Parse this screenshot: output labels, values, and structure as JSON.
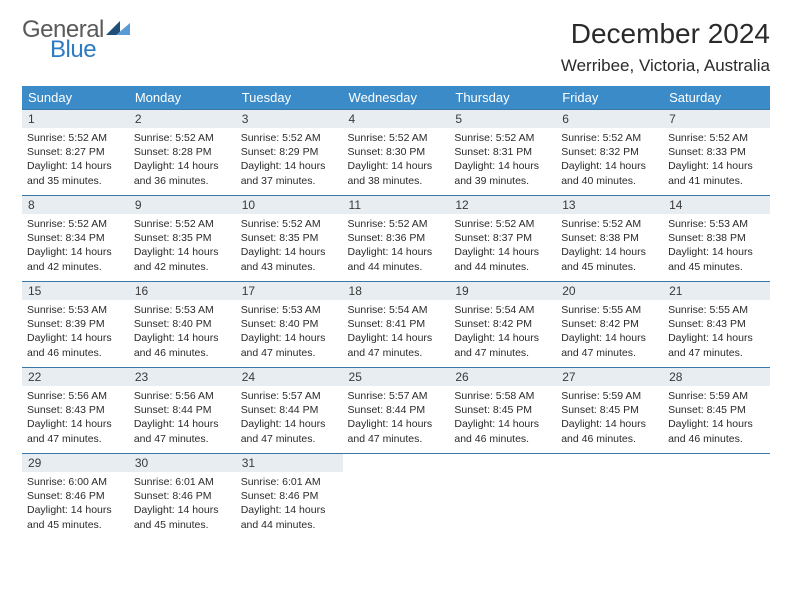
{
  "logo": {
    "word1": "General",
    "word2": "Blue"
  },
  "title": "December 2024",
  "location": "Werribee, Victoria, Australia",
  "colors": {
    "header_bg": "#3b8bc9",
    "header_text": "#ffffff",
    "row_border": "#3b78a8",
    "day_bar_bg": "#e8edf1",
    "logo_gray": "#5a5a5a",
    "logo_blue": "#2d7bc0",
    "tri_dark": "#1f4e79",
    "tri_light": "#5b9bd5"
  },
  "weekdays": [
    "Sunday",
    "Monday",
    "Tuesday",
    "Wednesday",
    "Thursday",
    "Friday",
    "Saturday"
  ],
  "weeks": [
    [
      {
        "day": "1",
        "sunrise": "5:52 AM",
        "sunset": "8:27 PM",
        "daylight": "14 hours and 35 minutes."
      },
      {
        "day": "2",
        "sunrise": "5:52 AM",
        "sunset": "8:28 PM",
        "daylight": "14 hours and 36 minutes."
      },
      {
        "day": "3",
        "sunrise": "5:52 AM",
        "sunset": "8:29 PM",
        "daylight": "14 hours and 37 minutes."
      },
      {
        "day": "4",
        "sunrise": "5:52 AM",
        "sunset": "8:30 PM",
        "daylight": "14 hours and 38 minutes."
      },
      {
        "day": "5",
        "sunrise": "5:52 AM",
        "sunset": "8:31 PM",
        "daylight": "14 hours and 39 minutes."
      },
      {
        "day": "6",
        "sunrise": "5:52 AM",
        "sunset": "8:32 PM",
        "daylight": "14 hours and 40 minutes."
      },
      {
        "day": "7",
        "sunrise": "5:52 AM",
        "sunset": "8:33 PM",
        "daylight": "14 hours and 41 minutes."
      }
    ],
    [
      {
        "day": "8",
        "sunrise": "5:52 AM",
        "sunset": "8:34 PM",
        "daylight": "14 hours and 42 minutes."
      },
      {
        "day": "9",
        "sunrise": "5:52 AM",
        "sunset": "8:35 PM",
        "daylight": "14 hours and 42 minutes."
      },
      {
        "day": "10",
        "sunrise": "5:52 AM",
        "sunset": "8:35 PM",
        "daylight": "14 hours and 43 minutes."
      },
      {
        "day": "11",
        "sunrise": "5:52 AM",
        "sunset": "8:36 PM",
        "daylight": "14 hours and 44 minutes."
      },
      {
        "day": "12",
        "sunrise": "5:52 AM",
        "sunset": "8:37 PM",
        "daylight": "14 hours and 44 minutes."
      },
      {
        "day": "13",
        "sunrise": "5:52 AM",
        "sunset": "8:38 PM",
        "daylight": "14 hours and 45 minutes."
      },
      {
        "day": "14",
        "sunrise": "5:53 AM",
        "sunset": "8:38 PM",
        "daylight": "14 hours and 45 minutes."
      }
    ],
    [
      {
        "day": "15",
        "sunrise": "5:53 AM",
        "sunset": "8:39 PM",
        "daylight": "14 hours and 46 minutes."
      },
      {
        "day": "16",
        "sunrise": "5:53 AM",
        "sunset": "8:40 PM",
        "daylight": "14 hours and 46 minutes."
      },
      {
        "day": "17",
        "sunrise": "5:53 AM",
        "sunset": "8:40 PM",
        "daylight": "14 hours and 47 minutes."
      },
      {
        "day": "18",
        "sunrise": "5:54 AM",
        "sunset": "8:41 PM",
        "daylight": "14 hours and 47 minutes."
      },
      {
        "day": "19",
        "sunrise": "5:54 AM",
        "sunset": "8:42 PM",
        "daylight": "14 hours and 47 minutes."
      },
      {
        "day": "20",
        "sunrise": "5:55 AM",
        "sunset": "8:42 PM",
        "daylight": "14 hours and 47 minutes."
      },
      {
        "day": "21",
        "sunrise": "5:55 AM",
        "sunset": "8:43 PM",
        "daylight": "14 hours and 47 minutes."
      }
    ],
    [
      {
        "day": "22",
        "sunrise": "5:56 AM",
        "sunset": "8:43 PM",
        "daylight": "14 hours and 47 minutes."
      },
      {
        "day": "23",
        "sunrise": "5:56 AM",
        "sunset": "8:44 PM",
        "daylight": "14 hours and 47 minutes."
      },
      {
        "day": "24",
        "sunrise": "5:57 AM",
        "sunset": "8:44 PM",
        "daylight": "14 hours and 47 minutes."
      },
      {
        "day": "25",
        "sunrise": "5:57 AM",
        "sunset": "8:44 PM",
        "daylight": "14 hours and 47 minutes."
      },
      {
        "day": "26",
        "sunrise": "5:58 AM",
        "sunset": "8:45 PM",
        "daylight": "14 hours and 46 minutes."
      },
      {
        "day": "27",
        "sunrise": "5:59 AM",
        "sunset": "8:45 PM",
        "daylight": "14 hours and 46 minutes."
      },
      {
        "day": "28",
        "sunrise": "5:59 AM",
        "sunset": "8:45 PM",
        "daylight": "14 hours and 46 minutes."
      }
    ],
    [
      {
        "day": "29",
        "sunrise": "6:00 AM",
        "sunset": "8:46 PM",
        "daylight": "14 hours and 45 minutes."
      },
      {
        "day": "30",
        "sunrise": "6:01 AM",
        "sunset": "8:46 PM",
        "daylight": "14 hours and 45 minutes."
      },
      {
        "day": "31",
        "sunrise": "6:01 AM",
        "sunset": "8:46 PM",
        "daylight": "14 hours and 44 minutes."
      },
      null,
      null,
      null,
      null
    ]
  ],
  "labels": {
    "sunrise": "Sunrise: ",
    "sunset": "Sunset: ",
    "daylight": "Daylight: "
  }
}
